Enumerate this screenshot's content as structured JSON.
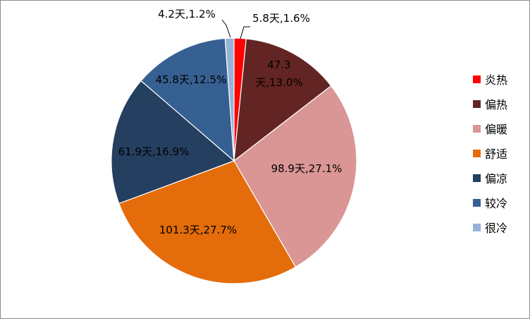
{
  "chart_data": {
    "type": "pie",
    "title": "",
    "series": [
      {
        "name": "炎热",
        "days": 5.8,
        "percent": 1.6,
        "label": "5.8天,1.6%",
        "color": "#ff0000"
      },
      {
        "name": "偏热",
        "days": 47.3,
        "percent": 13.0,
        "label": "47.3天,13.0%",
        "label_lines": [
          "47.3",
          "天,13.0%"
        ],
        "color": "#632523"
      },
      {
        "name": "偏暖",
        "days": 98.9,
        "percent": 27.1,
        "label": "98.9天,27.1%",
        "color": "#d99694"
      },
      {
        "name": "舒适",
        "days": 101.3,
        "percent": 27.7,
        "label": "101.3天,27.7%",
        "color": "#e46c0a"
      },
      {
        "name": "偏凉",
        "days": 61.9,
        "percent": 16.9,
        "label": "61.9天,16.9%",
        "color": "#243f60"
      },
      {
        "name": "较冷",
        "days": 45.8,
        "percent": 12.5,
        "label": "45.8天,12.5%",
        "color": "#366092"
      },
      {
        "name": "很冷",
        "days": 4.2,
        "percent": 1.2,
        "label": "4.2天,1.2%",
        "color": "#95b3d7"
      }
    ],
    "legend_position": "right"
  }
}
